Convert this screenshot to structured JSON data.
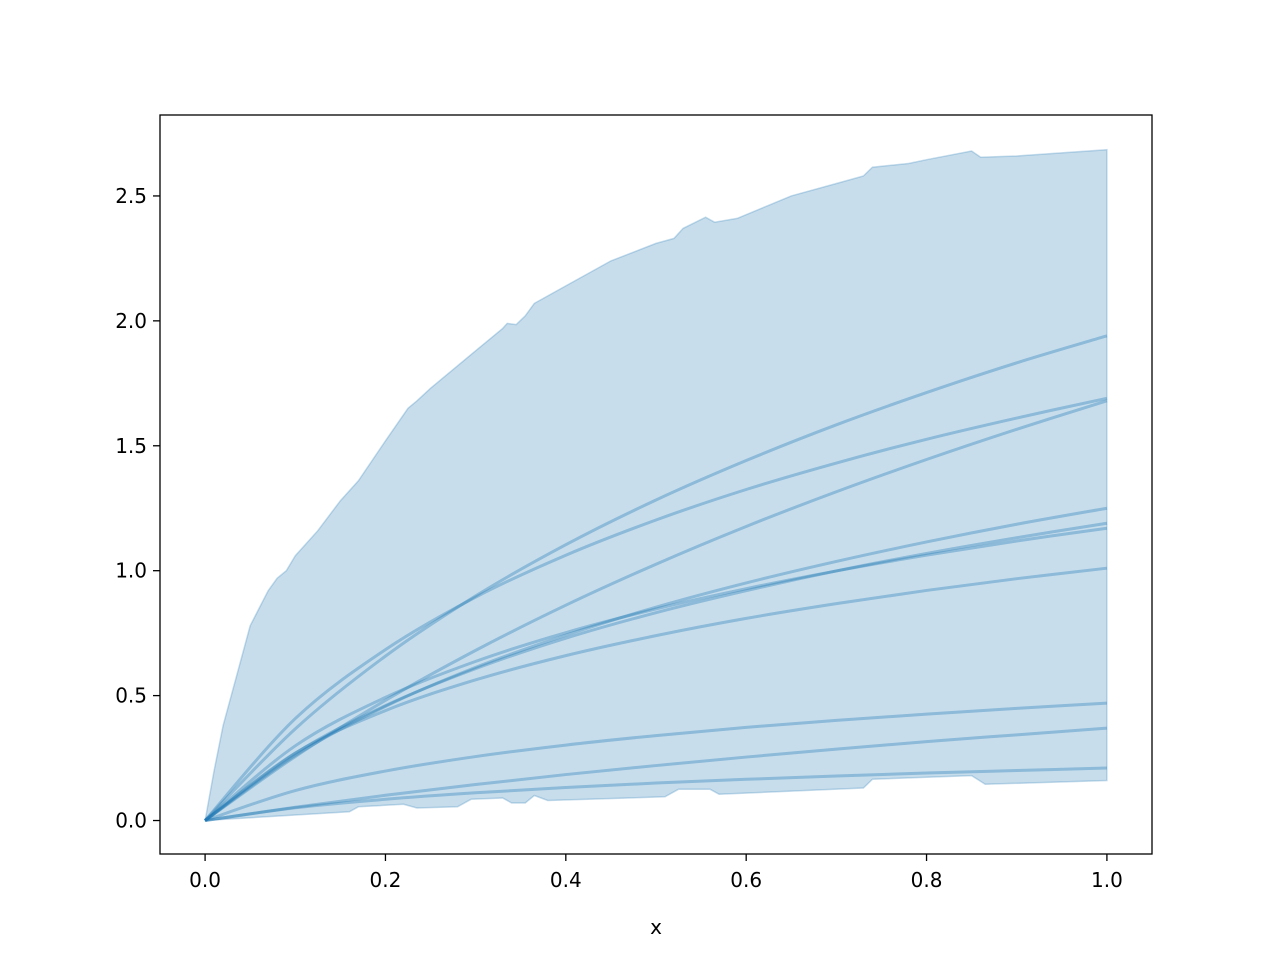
{
  "chart_data": {
    "type": "line",
    "title": "",
    "xlabel": "x",
    "ylabel": "",
    "xlim": [
      -0.05,
      1.05
    ],
    "ylim": [
      -0.134,
      2.824
    ],
    "grid": false,
    "legend": "none",
    "color": "#1f77b4",
    "x_ticks": [
      0.0,
      0.2,
      0.4,
      0.6,
      0.8,
      1.0
    ],
    "x_tick_labels": [
      "0.0",
      "0.2",
      "0.4",
      "0.6",
      "0.8",
      "1.0"
    ],
    "y_ticks": [
      0.0,
      0.5,
      1.0,
      1.5,
      2.0,
      2.5
    ],
    "y_tick_labels": [
      "0.0",
      "0.5",
      "1.0",
      "1.5",
      "2.0",
      "2.5"
    ],
    "x": [
      0.0,
      0.1,
      0.2,
      0.3,
      0.4,
      0.5,
      0.6,
      0.7,
      0.8,
      0.9,
      1.0
    ],
    "series": [
      {
        "values": [
          0,
          0.367,
          0.658,
          0.899,
          1.104,
          1.283,
          1.441,
          1.584,
          1.713,
          1.832,
          1.94
        ]
      },
      {
        "values": [
          0,
          0.408,
          0.684,
          0.894,
          1.062,
          1.203,
          1.325,
          1.431,
          1.526,
          1.611,
          1.69
        ]
      },
      {
        "values": [
          0,
          0.256,
          0.481,
          0.681,
          0.862,
          1.026,
          1.177,
          1.316,
          1.445,
          1.566,
          1.68
        ]
      },
      {
        "values": [
          0,
          0.261,
          0.457,
          0.613,
          0.742,
          0.854,
          0.951,
          1.037,
          1.115,
          1.186,
          1.25
        ]
      },
      {
        "values": [
          0,
          0.269,
          0.46,
          0.608,
          0.73,
          0.832,
          0.92,
          0.999,
          1.069,
          1.132,
          1.19
        ]
      },
      {
        "values": [
          0,
          0.299,
          0.493,
          0.637,
          0.752,
          0.847,
          0.928,
          0.999,
          1.062,
          1.119,
          1.17
        ]
      },
      {
        "values": [
          0,
          0.27,
          0.44,
          0.563,
          0.66,
          0.74,
          0.809,
          0.868,
          0.921,
          0.968,
          1.01
        ]
      },
      {
        "values": [
          0,
          0.12,
          0.198,
          0.256,
          0.302,
          0.34,
          0.373,
          0.401,
          0.426,
          0.449,
          0.47
        ]
      },
      {
        "values": [
          0,
          0.053,
          0.101,
          0.144,
          0.184,
          0.22,
          0.254,
          0.286,
          0.316,
          0.343,
          0.37
        ]
      },
      {
        "values": [
          0,
          0.051,
          0.085,
          0.111,
          0.132,
          0.15,
          0.165,
          0.178,
          0.19,
          0.2,
          0.21
        ]
      }
    ],
    "band": {
      "upper": [
        [
          0,
          0
        ],
        [
          0.01,
          0.2
        ],
        [
          0.02,
          0.38
        ],
        [
          0.035,
          0.58
        ],
        [
          0.05,
          0.78
        ],
        [
          0.07,
          0.92
        ],
        [
          0.08,
          0.97
        ],
        [
          0.09,
          1.0
        ],
        [
          0.1,
          1.06
        ],
        [
          0.125,
          1.16
        ],
        [
          0.15,
          1.28
        ],
        [
          0.17,
          1.36
        ],
        [
          0.2,
          1.52
        ],
        [
          0.225,
          1.65
        ],
        [
          0.235,
          1.68
        ],
        [
          0.25,
          1.73
        ],
        [
          0.3,
          1.88
        ],
        [
          0.33,
          1.97
        ],
        [
          0.335,
          1.99
        ],
        [
          0.345,
          1.985
        ],
        [
          0.355,
          2.02
        ],
        [
          0.365,
          2.07
        ],
        [
          0.38,
          2.1
        ],
        [
          0.4,
          2.14
        ],
        [
          0.45,
          2.24
        ],
        [
          0.5,
          2.31
        ],
        [
          0.52,
          2.33
        ],
        [
          0.53,
          2.37
        ],
        [
          0.555,
          2.415
        ],
        [
          0.565,
          2.395
        ],
        [
          0.59,
          2.41
        ],
        [
          0.65,
          2.5
        ],
        [
          0.7,
          2.55
        ],
        [
          0.73,
          2.58
        ],
        [
          0.74,
          2.615
        ],
        [
          0.78,
          2.63
        ],
        [
          0.8,
          2.645
        ],
        [
          0.85,
          2.68
        ],
        [
          0.86,
          2.655
        ],
        [
          0.9,
          2.66
        ],
        [
          1.0,
          2.685
        ]
      ],
      "lower": [
        [
          0,
          0
        ],
        [
          0.16,
          0.035
        ],
        [
          0.17,
          0.055
        ],
        [
          0.22,
          0.065
        ],
        [
          0.235,
          0.05
        ],
        [
          0.28,
          0.055
        ],
        [
          0.295,
          0.085
        ],
        [
          0.33,
          0.09
        ],
        [
          0.34,
          0.07
        ],
        [
          0.355,
          0.07
        ],
        [
          0.365,
          0.1
        ],
        [
          0.38,
          0.08
        ],
        [
          0.51,
          0.095
        ],
        [
          0.525,
          0.125
        ],
        [
          0.56,
          0.125
        ],
        [
          0.57,
          0.105
        ],
        [
          0.73,
          0.13
        ],
        [
          0.74,
          0.165
        ],
        [
          0.85,
          0.18
        ],
        [
          0.865,
          0.145
        ],
        [
          1.0,
          0.16
        ]
      ]
    }
  }
}
